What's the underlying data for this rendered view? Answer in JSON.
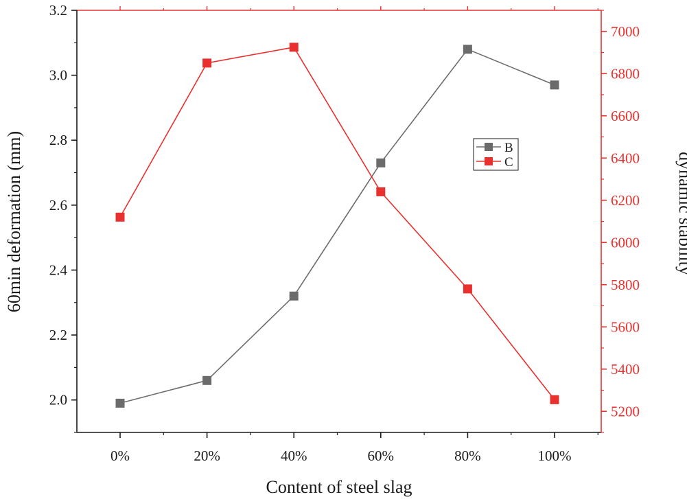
{
  "chart_data": {
    "type": "line",
    "categories": [
      "0%",
      "20%",
      "40%",
      "60%",
      "80%",
      "100%"
    ],
    "xlabel": "Content of steel slag",
    "ylabel_left": "60min deformation (mm)",
    "ylabel_right": "dynamic stability",
    "ylim_left": [
      1.9,
      3.2
    ],
    "ylim_right": [
      5100,
      7100
    ],
    "yticks_left": [
      "2.0",
      "2.2",
      "2.4",
      "2.6",
      "2.8",
      "3.0",
      "3.2"
    ],
    "yticks_right": [
      "5200",
      "5400",
      "5600",
      "5800",
      "6000",
      "6200",
      "6400",
      "6600",
      "6800",
      "7000"
    ],
    "grid": false,
    "legend_position": "center-right",
    "series": [
      {
        "name": "B",
        "axis": "left",
        "color": "#6b6b6b",
        "values": [
          1.99,
          2.06,
          2.32,
          2.73,
          3.08,
          2.97
        ]
      },
      {
        "name": "C",
        "axis": "right",
        "color": "#e8312f",
        "values": [
          6120,
          6850,
          6925,
          6240,
          5780,
          5255
        ]
      }
    ]
  }
}
